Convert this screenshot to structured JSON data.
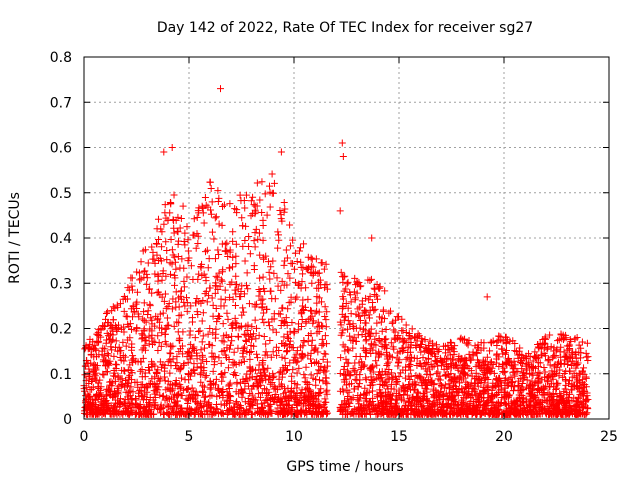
{
  "chart_data": {
    "type": "scatter",
    "title": "Day 142 of 2022, Rate Of TEC Index for receiver sg27",
    "xlabel": "GPS time / hours",
    "ylabel": "ROTI / TECUs",
    "xlim": [
      0,
      25
    ],
    "ylim": [
      0,
      0.8
    ],
    "xticks": [
      "0",
      "5",
      "10",
      "15",
      "20",
      "25"
    ],
    "yticks": [
      "0",
      "0.1",
      "0.2",
      "0.3",
      "0.4",
      "0.5",
      "0.6",
      "0.7",
      "0.8"
    ],
    "grid": true,
    "marker": "plus",
    "color": "#ff0000",
    "data_gap_hours": [
      11.6,
      12.2
    ],
    "outliers": [
      {
        "x": 6.5,
        "y": 0.73
      },
      {
        "x": 12.3,
        "y": 0.61
      },
      {
        "x": 12.35,
        "y": 0.58
      },
      {
        "x": 4.2,
        "y": 0.6
      },
      {
        "x": 3.8,
        "y": 0.59
      },
      {
        "x": 9.4,
        "y": 0.59
      },
      {
        "x": 12.2,
        "y": 0.46
      },
      {
        "x": 13.7,
        "y": 0.4
      },
      {
        "x": 19.2,
        "y": 0.27
      }
    ],
    "envelope": [
      {
        "x": 0,
        "y": 0.15
      },
      {
        "x": 1,
        "y": 0.22
      },
      {
        "x": 2,
        "y": 0.28
      },
      {
        "x": 3,
        "y": 0.38
      },
      {
        "x": 4,
        "y": 0.5
      },
      {
        "x": 5,
        "y": 0.45
      },
      {
        "x": 6,
        "y": 0.52
      },
      {
        "x": 7,
        "y": 0.48
      },
      {
        "x": 8,
        "y": 0.5
      },
      {
        "x": 9,
        "y": 0.55
      },
      {
        "x": 10,
        "y": 0.4
      },
      {
        "x": 11,
        "y": 0.35
      },
      {
        "x": 12.5,
        "y": 0.32
      },
      {
        "x": 13,
        "y": 0.3
      },
      {
        "x": 14,
        "y": 0.3
      },
      {
        "x": 15,
        "y": 0.22
      },
      {
        "x": 16,
        "y": 0.18
      },
      {
        "x": 17,
        "y": 0.15
      },
      {
        "x": 18,
        "y": 0.18
      },
      {
        "x": 19,
        "y": 0.16
      },
      {
        "x": 20,
        "y": 0.18
      },
      {
        "x": 21,
        "y": 0.14
      },
      {
        "x": 22,
        "y": 0.18
      },
      {
        "x": 23,
        "y": 0.18
      },
      {
        "x": 24,
        "y": 0.16
      }
    ]
  }
}
